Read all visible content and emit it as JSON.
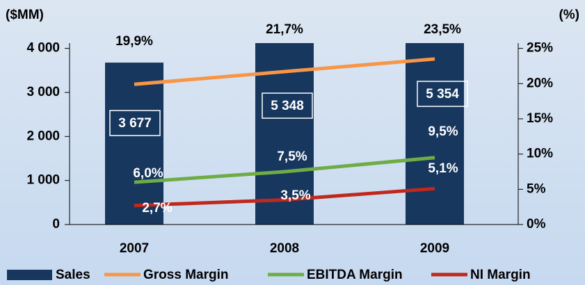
{
  "chart_data": {
    "type": "bar",
    "y_label": "($MM)",
    "y2_label": "(%)",
    "categories": [
      "2007",
      "2008",
      "2009"
    ],
    "ylim": [
      0,
      4120
    ],
    "yticks": [
      0,
      {
        "value": 1000,
        "label": "1 000"
      },
      {
        "value": 2000,
        "label": "2 000"
      },
      {
        "value": 3000,
        "label": "3 000"
      },
      {
        "value": 4000,
        "label": "4 000"
      }
    ],
    "y2lim": [
      0,
      25.75
    ],
    "y2ticks": [
      {
        "value": 0,
        "label": "0%"
      },
      {
        "value": 5,
        "label": "5%"
      },
      {
        "value": 10,
        "label": "10%"
      },
      {
        "value": 15,
        "label": "15%"
      },
      {
        "value": 20,
        "label": "20%"
      },
      {
        "value": 25,
        "label": "25%"
      }
    ],
    "series": [
      {
        "name": "Sales",
        "type": "bar",
        "color": "#17375e",
        "values": [
          3677,
          5348,
          5354
        ],
        "value_labels": [
          "3 677",
          "5 348",
          "5 354"
        ]
      },
      {
        "name": "Gross Margin",
        "type": "line",
        "axis": "y2",
        "color": "#f79646",
        "values": [
          19.9,
          21.7,
          23.5
        ],
        "value_labels": [
          "19,9%",
          "21,7%",
          "23,5%"
        ]
      },
      {
        "name": "EBITDA Margin",
        "type": "line",
        "axis": "y2",
        "color": "#6fac46",
        "values": [
          6.0,
          7.5,
          9.5
        ],
        "value_labels": [
          "6,0%",
          "7,5%",
          "9,5%"
        ]
      },
      {
        "name": "NI Margin",
        "type": "line",
        "axis": "y2",
        "color": "#c0281d",
        "values": [
          2.7,
          3.5,
          5.1
        ],
        "value_labels": [
          "2,7%",
          "3,5%",
          "5,1%"
        ]
      }
    ]
  }
}
